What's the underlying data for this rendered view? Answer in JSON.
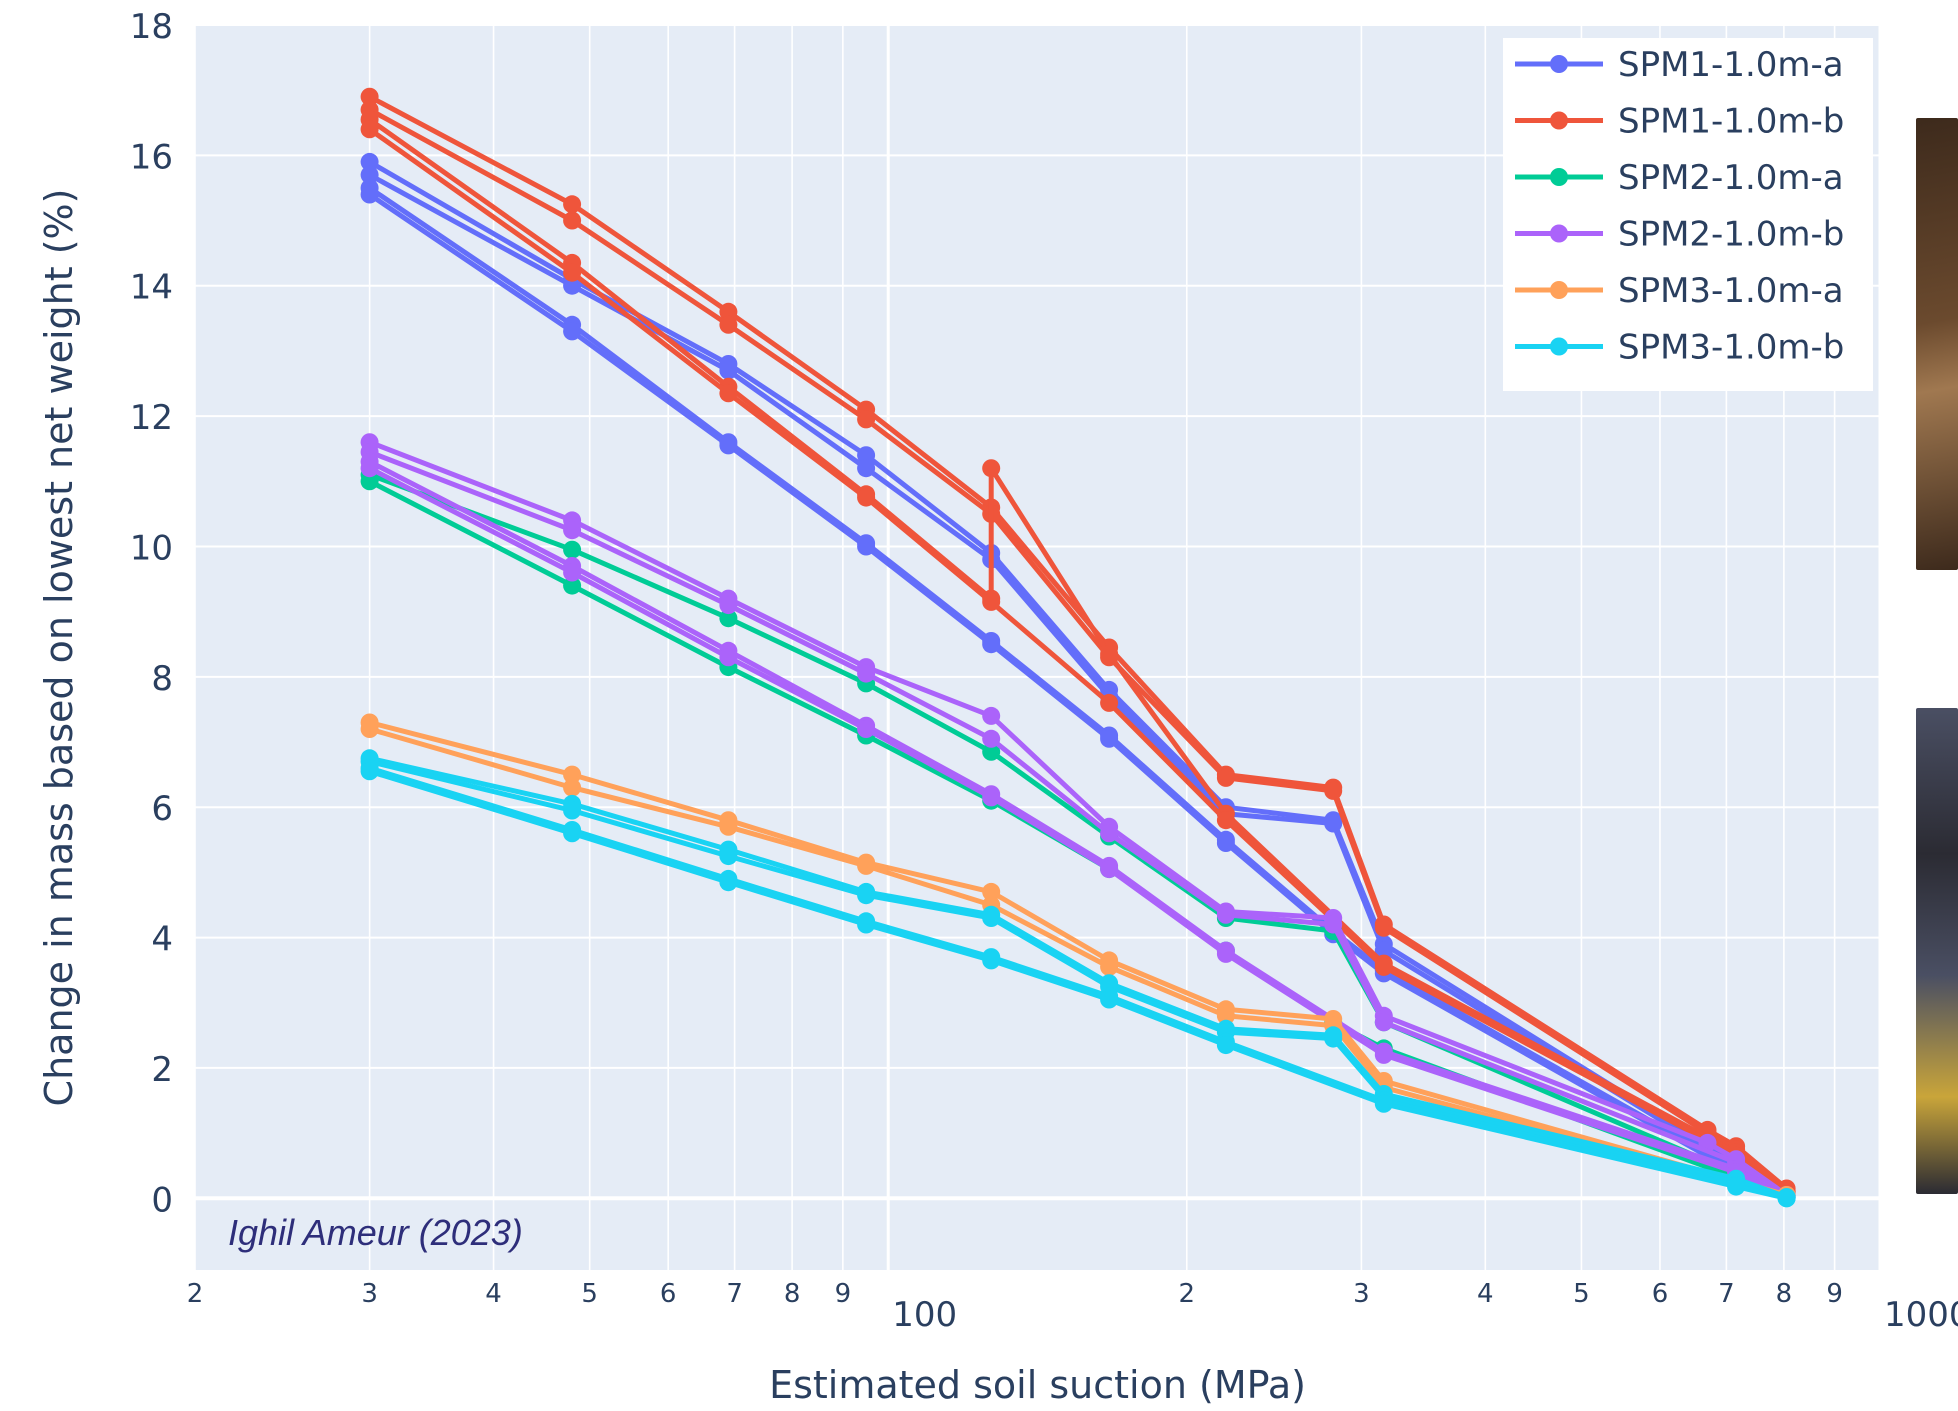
{
  "chart_data": {
    "type": "line",
    "title": "",
    "xlabel": "Estimated soil suction (MPa)",
    "ylabel": "Change in mass based on lowest net weight (%)",
    "x_scale": "log",
    "xlim": [
      20,
      1000
    ],
    "ylim": [
      -1.1,
      18
    ],
    "y_ticks": [
      "0",
      "2",
      "4",
      "6",
      "8",
      "10",
      "12",
      "14",
      "16",
      "18"
    ],
    "x_ticks": [
      {
        "value": 20,
        "label": "2",
        "major": false
      },
      {
        "value": 30,
        "label": "3",
        "major": false
      },
      {
        "value": 40,
        "label": "4",
        "major": false
      },
      {
        "value": 50,
        "label": "5",
        "major": false
      },
      {
        "value": 60,
        "label": "6",
        "major": false
      },
      {
        "value": 70,
        "label": "7",
        "major": false
      },
      {
        "value": 80,
        "label": "8",
        "major": false
      },
      {
        "value": 90,
        "label": "9",
        "major": false
      },
      {
        "value": 100,
        "label": "100",
        "major": true
      },
      {
        "value": 200,
        "label": "2",
        "major": false
      },
      {
        "value": 300,
        "label": "3",
        "major": false
      },
      {
        "value": 400,
        "label": "4",
        "major": false
      },
      {
        "value": 500,
        "label": "5",
        "major": false
      },
      {
        "value": 600,
        "label": "6",
        "major": false
      },
      {
        "value": 700,
        "label": "7",
        "major": false
      },
      {
        "value": 800,
        "label": "8",
        "major": false
      },
      {
        "value": 900,
        "label": "9",
        "major": false
      },
      {
        "value": 1000,
        "label": "1000",
        "major": true
      }
    ],
    "grid": true,
    "legend_position": "top-right",
    "annotation": "Ighil Ameur (2023)",
    "series": [
      {
        "name": "SPM1-1.0m-a",
        "color": "#636efa",
        "curves": [
          {
            "x": [
              30,
              48,
              69,
              95,
              127,
              167,
              219,
              281,
              316,
              706,
              805
            ],
            "y": [
              15.9,
              14.1,
              12.8,
              11.4,
              9.9,
              7.8,
              6.0,
              5.8,
              3.9,
              0.6,
              0.1
            ]
          },
          {
            "x": [
              30,
              48,
              69,
              95,
              127,
              167,
              219,
              281,
              316,
              706,
              805
            ],
            "y": [
              15.7,
              14.0,
              12.7,
              11.2,
              9.8,
              7.7,
              5.9,
              5.75,
              3.8,
              0.55,
              0.08
            ]
          },
          {
            "x": [
              30,
              48,
              69,
              95,
              127,
              167,
              219,
              281,
              316,
              706,
              805
            ],
            "y": [
              15.5,
              13.4,
              11.6,
              10.05,
              8.55,
              7.1,
              5.5,
              4.1,
              3.5,
              0.5,
              0.05
            ]
          },
          {
            "x": [
              30,
              48,
              69,
              95,
              127,
              167,
              219,
              281,
              316,
              706,
              805
            ],
            "y": [
              15.4,
              13.3,
              11.55,
              10.0,
              8.5,
              7.05,
              5.45,
              4.05,
              3.45,
              0.45,
              0.02
            ]
          }
        ]
      },
      {
        "name": "SPM1-1.0m-b",
        "color": "#ef553b",
        "curves": [
          {
            "x": [
              30,
              48,
              69,
              95,
              127,
              167,
              219,
              281,
              316,
              670,
              716,
              805
            ],
            "y": [
              16.9,
              15.25,
              13.6,
              12.1,
              10.6,
              8.45,
              6.5,
              6.3,
              4.2,
              1.05,
              0.8,
              0.15
            ]
          },
          {
            "x": [
              30,
              48,
              69,
              95,
              127,
              167,
              219,
              281,
              316,
              670,
              716,
              805
            ],
            "y": [
              16.7,
              15.0,
              13.4,
              11.95,
              10.5,
              8.3,
              6.45,
              6.25,
              4.15,
              1.0,
              0.75,
              0.12
            ]
          },
          {
            "x": [
              30,
              48,
              69,
              95,
              127,
              127,
              167,
              219,
              316,
              716,
              805
            ],
            "y": [
              16.55,
              14.35,
              12.45,
              10.8,
              9.2,
              11.2,
              8.35,
              5.9,
              3.6,
              0.7,
              0.1
            ]
          },
          {
            "x": [
              30,
              48,
              69,
              95,
              127,
              167,
              219,
              316,
              716,
              805
            ],
            "y": [
              16.4,
              14.2,
              12.35,
              10.75,
              9.15,
              7.6,
              5.8,
              3.55,
              0.65,
              0.08
            ]
          }
        ]
      },
      {
        "name": "SPM2-1.0m-a",
        "color": "#00cc96",
        "curves": [
          {
            "x": [
              30,
              48,
              69,
              95,
              127,
              167,
              219,
              281,
              316,
              805
            ],
            "y": [
              11.1,
              9.95,
              8.9,
              7.9,
              6.85,
              5.55,
              4.3,
              4.1,
              2.7,
              0.05
            ]
          },
          {
            "x": [
              30,
              48,
              69,
              95,
              127,
              167,
              219,
              281,
              316,
              805
            ],
            "y": [
              11.0,
              9.4,
              8.15,
              7.1,
              6.1,
              5.05,
              3.8,
              2.7,
              2.3,
              0.03
            ]
          }
        ]
      },
      {
        "name": "SPM2-1.0m-b",
        "color": "#ab63fa",
        "curves": [
          {
            "x": [
              30,
              48,
              69,
              95,
              127,
              167,
              219,
              281,
              316,
              670,
              716,
              805
            ],
            "y": [
              11.6,
              10.4,
              9.2,
              8.15,
              7.4,
              5.7,
              4.4,
              4.3,
              2.8,
              0.85,
              0.6,
              0.05
            ]
          },
          {
            "x": [
              30,
              48,
              69,
              95,
              127,
              167,
              219,
              281,
              316,
              716,
              805
            ],
            "y": [
              11.45,
              10.25,
              9.1,
              8.05,
              7.05,
              5.6,
              4.35,
              4.2,
              2.7,
              0.55,
              0.04
            ]
          },
          {
            "x": [
              30,
              48,
              69,
              95,
              127,
              167,
              219,
              316,
              716,
              805
            ],
            "y": [
              11.3,
              9.7,
              8.4,
              7.25,
              6.2,
              5.1,
              3.8,
              2.25,
              0.45,
              0.02
            ]
          },
          {
            "x": [
              30,
              48,
              69,
              95,
              127,
              167,
              219,
              316,
              716,
              805
            ],
            "y": [
              11.2,
              9.6,
              8.3,
              7.2,
              6.15,
              5.05,
              3.75,
              2.2,
              0.4,
              0.01
            ]
          }
        ]
      },
      {
        "name": "SPM3-1.0m-a",
        "color": "#ffa15a",
        "curves": [
          {
            "x": [
              30,
              48,
              69,
              95,
              127,
              167,
              219,
              281,
              316,
              805
            ],
            "y": [
              7.3,
              6.5,
              5.8,
              5.15,
              4.7,
              3.65,
              2.9,
              2.75,
              1.8,
              0.05
            ]
          },
          {
            "x": [
              30,
              48,
              69,
              95,
              127,
              167,
              219,
              281,
              316,
              805
            ],
            "y": [
              7.2,
              6.3,
              5.7,
              5.1,
              4.5,
              3.55,
              2.8,
              2.65,
              1.7,
              0.03
            ]
          }
        ]
      },
      {
        "name": "SPM3-1.0m-b",
        "color": "#19d3f3",
        "curves": [
          {
            "x": [
              30,
              48,
              69,
              95,
              127,
              167,
              219,
              281,
              316,
              716,
              805
            ],
            "y": [
              6.75,
              6.05,
              5.35,
              4.7,
              4.35,
              3.3,
              2.6,
              2.5,
              1.6,
              0.3,
              0.02
            ]
          },
          {
            "x": [
              30,
              48,
              69,
              95,
              127,
              167,
              219,
              281,
              316,
              716,
              805
            ],
            "y": [
              6.7,
              5.95,
              5.25,
              4.65,
              4.3,
              3.25,
              2.55,
              2.45,
              1.55,
              0.25,
              0.01
            ]
          },
          {
            "x": [
              30,
              48,
              69,
              95,
              127,
              167,
              219,
              316,
              716,
              805
            ],
            "y": [
              6.6,
              5.65,
              4.9,
              4.25,
              3.7,
              3.1,
              2.4,
              1.5,
              0.2,
              0.0
            ]
          },
          {
            "x": [
              30,
              48,
              69,
              95,
              127,
              167,
              219,
              316,
              716,
              805
            ],
            "y": [
              6.55,
              5.6,
              4.85,
              4.2,
              3.65,
              3.05,
              2.35,
              1.45,
              0.18,
              0.0
            ]
          }
        ]
      }
    ]
  },
  "colors": {
    "plot_background": "#e5ecf6",
    "gridline": "#ffffff",
    "axis_text": "#2a3f5f",
    "annotation_text": "#2e2e7a"
  },
  "photos": [
    {
      "name": "specimen-photo-top",
      "colors": [
        "#3d2a1c",
        "#6b4a2e",
        "#a07850"
      ]
    },
    {
      "name": "specimen-photo-bottom",
      "colors": [
        "#2b2b33",
        "#4a4f63",
        "#c9a53a"
      ]
    }
  ]
}
